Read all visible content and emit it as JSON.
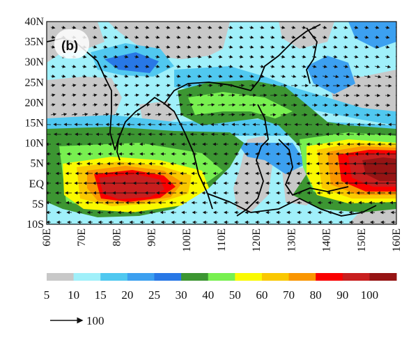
{
  "panel_label": "(b)",
  "lat_labels": [
    "40N",
    "35N",
    "30N",
    "25N",
    "20N",
    "15N",
    "10N",
    "5N",
    "EQ",
    "5S",
    "10S"
  ],
  "lon_labels": [
    "60E",
    "70E",
    "80E",
    "90E",
    "100E",
    "110E",
    "120E",
    "130E",
    "140E",
    "150E",
    "160E"
  ],
  "extent": {
    "lon": [
      60,
      160
    ],
    "lat": [
      -10,
      40
    ]
  },
  "colorbar": {
    "levels": [
      "5",
      "10",
      "15",
      "20",
      "25",
      "30",
      "40",
      "50",
      "60",
      "70",
      "80",
      "90",
      "100"
    ],
    "colors": [
      "#c8c8c8",
      "#a0f0fa",
      "#50c8f0",
      "#3ca0f0",
      "#2878e6",
      "#3c9632",
      "#78f050",
      "#fafa00",
      "#fac800",
      "#fa9600",
      "#fa0000",
      "#c81e1e",
      "#961414"
    ]
  },
  "reference_vector": {
    "label": "100"
  }
}
